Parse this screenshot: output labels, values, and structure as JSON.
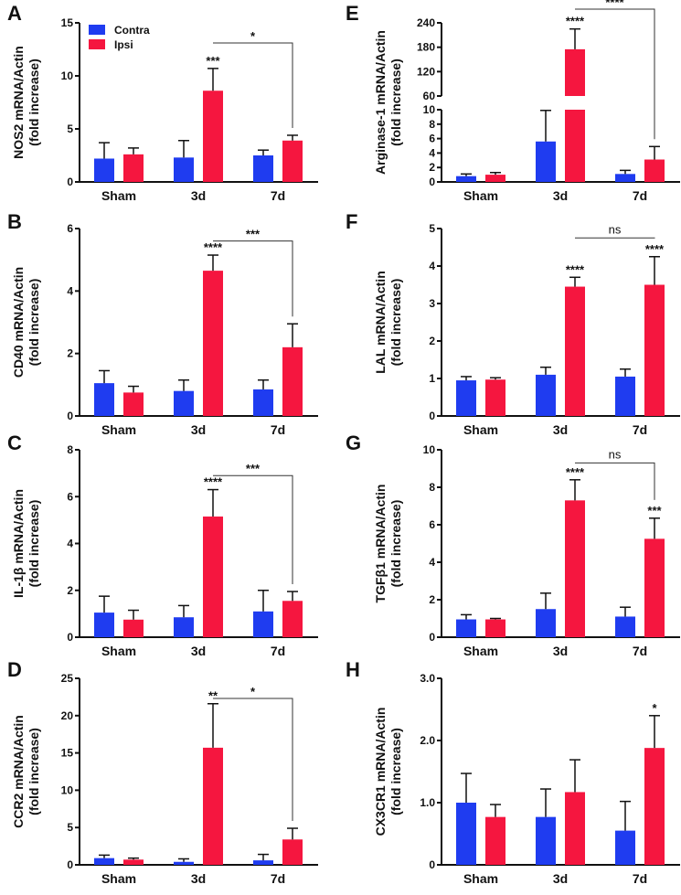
{
  "chart_data": [
    {
      "type": "bar",
      "panel": "A",
      "ylabel": "NOS2 mRNA/Actin",
      "ylabel2": "(fold increase)",
      "categories": [
        "Sham",
        "3d",
        "7d"
      ],
      "ylim": [
        0,
        15
      ],
      "yticks": [
        "0",
        "5",
        "10",
        "15"
      ],
      "ytick_values": [
        0,
        5,
        10,
        15
      ],
      "series": [
        {
          "name": "Contra",
          "values": [
            2.2,
            2.3,
            2.5
          ],
          "err_top": [
            3.7,
            3.9,
            3.0
          ]
        },
        {
          "name": "Ipsi",
          "values": [
            2.6,
            8.6,
            3.9
          ],
          "err_top": [
            3.2,
            10.7,
            4.4
          ]
        }
      ],
      "annotations": [
        {
          "category": "3d",
          "series": "Ipsi",
          "label": "***"
        }
      ],
      "bracket": {
        "from": "3d",
        "to": "7d",
        "level": 13.1,
        "label": "*"
      },
      "legend": {
        "placement": "top-left",
        "entries": [
          "Contra",
          "Ipsi"
        ]
      }
    },
    {
      "type": "bar",
      "panel": "B",
      "ylabel": "CD40 mRNA/Actin",
      "ylabel2": "(fold increase)",
      "categories": [
        "Sham",
        "3d",
        "7d"
      ],
      "ylim": [
        0,
        6
      ],
      "yticks": [
        "0",
        "2",
        "4",
        "6"
      ],
      "ytick_values": [
        0,
        2,
        4,
        6
      ],
      "series": [
        {
          "name": "Contra",
          "values": [
            1.05,
            0.8,
            0.85
          ],
          "err_top": [
            1.45,
            1.15,
            1.15
          ]
        },
        {
          "name": "Ipsi",
          "values": [
            0.75,
            4.65,
            2.2
          ],
          "err_top": [
            0.95,
            5.15,
            2.95
          ]
        }
      ],
      "annotations": [
        {
          "category": "3d",
          "series": "Ipsi",
          "label": "****"
        }
      ],
      "bracket": {
        "from": "3d",
        "to": "7d",
        "level": 5.6,
        "label": "***"
      }
    },
    {
      "type": "bar",
      "panel": "C",
      "ylabel": "IL-1β mRNA/Actin",
      "ylabel2": "(fold increase)",
      "categories": [
        "Sham",
        "3d",
        "7d"
      ],
      "ylim": [
        0,
        8
      ],
      "yticks": [
        "0",
        "2",
        "4",
        "6",
        "8"
      ],
      "ytick_values": [
        0,
        2,
        4,
        6,
        8
      ],
      "series": [
        {
          "name": "Contra",
          "values": [
            1.05,
            0.85,
            1.1
          ],
          "err_top": [
            1.75,
            1.35,
            2.0
          ]
        },
        {
          "name": "Ipsi",
          "values": [
            0.75,
            5.15,
            1.55
          ],
          "err_top": [
            1.15,
            6.3,
            1.95
          ]
        }
      ],
      "annotations": [
        {
          "category": "3d",
          "series": "Ipsi",
          "label": "****"
        }
      ],
      "bracket": {
        "from": "3d",
        "to": "7d",
        "level": 6.9,
        "label": "***"
      }
    },
    {
      "type": "bar",
      "panel": "D",
      "ylabel": "CCR2 mRNA/Actin",
      "ylabel2": "(fold increase)",
      "categories": [
        "Sham",
        "3d",
        "7d"
      ],
      "ylim": [
        0,
        25
      ],
      "yticks": [
        "0",
        "5",
        "10",
        "15",
        "20",
        "25"
      ],
      "ytick_values": [
        0,
        5,
        10,
        15,
        20,
        25
      ],
      "series": [
        {
          "name": "Contra",
          "values": [
            0.9,
            0.4,
            0.6
          ],
          "err_top": [
            1.3,
            0.8,
            1.4
          ]
        },
        {
          "name": "Ipsi",
          "values": [
            0.7,
            15.7,
            3.4
          ],
          "err_top": [
            0.9,
            21.6,
            4.9
          ]
        }
      ],
      "annotations": [
        {
          "category": "3d",
          "series": "Ipsi",
          "label": "**"
        }
      ],
      "bracket": {
        "from": "3d",
        "to": "7d",
        "level": 22.3,
        "label": "*"
      }
    },
    {
      "type": "bar",
      "panel": "E",
      "ylabel": "Arginase-1 mRNA/Actin",
      "ylabel2": "(fold increase)",
      "categories": [
        "Sham",
        "3d",
        "7d"
      ],
      "broken_axis": {
        "lower": [
          0,
          10
        ],
        "upper": [
          60,
          240
        ]
      },
      "yticks": [
        "0",
        "2",
        "4",
        "6",
        "8",
        "10",
        "60",
        "120",
        "180",
        "240"
      ],
      "ytick_values": [
        0,
        2,
        4,
        6,
        8,
        10,
        60,
        120,
        180,
        240
      ],
      "series": [
        {
          "name": "Contra",
          "values": [
            0.8,
            5.6,
            1.1
          ],
          "err_top": [
            1.1,
            9.9,
            1.6
          ]
        },
        {
          "name": "Ipsi",
          "values": [
            1.0,
            175,
            3.1
          ],
          "err_top": [
            1.3,
            225,
            4.9
          ]
        }
      ],
      "annotations": [
        {
          "category": "3d",
          "series": "Ipsi",
          "label": "****"
        }
      ],
      "bracket": {
        "from": "3d",
        "to": "7d",
        "level": 255,
        "label": "****"
      }
    },
    {
      "type": "bar",
      "panel": "F",
      "ylabel": "LAL mRNA/Actin",
      "ylabel2": "(fold increase)",
      "categories": [
        "Sham",
        "3d",
        "7d"
      ],
      "ylim": [
        0,
        5
      ],
      "yticks": [
        "0",
        "1",
        "2",
        "3",
        "4",
        "5"
      ],
      "ytick_values": [
        0,
        1,
        2,
        3,
        4,
        5
      ],
      "series": [
        {
          "name": "Contra",
          "values": [
            0.95,
            1.1,
            1.05
          ],
          "err_top": [
            1.05,
            1.3,
            1.25
          ]
        },
        {
          "name": "Ipsi",
          "values": [
            0.97,
            3.45,
            3.5
          ],
          "err_top": [
            1.02,
            3.7,
            4.25
          ]
        }
      ],
      "annotations": [
        {
          "category": "3d",
          "series": "Ipsi",
          "label": "****"
        },
        {
          "category": "7d",
          "series": "Ipsi",
          "label": "****"
        }
      ],
      "bracket": {
        "from": "3d",
        "to": "7d",
        "level": 4.75,
        "label": "ns"
      }
    },
    {
      "type": "bar",
      "panel": "G",
      "ylabel": "TGFβ1 mRNA/Actin",
      "ylabel2": "(fold increase)",
      "categories": [
        "Sham",
        "3d",
        "7d"
      ],
      "ylim": [
        0,
        10
      ],
      "yticks": [
        "0",
        "2",
        "4",
        "6",
        "8",
        "10"
      ],
      "ytick_values": [
        0,
        2,
        4,
        6,
        8,
        10
      ],
      "series": [
        {
          "name": "Contra",
          "values": [
            0.95,
            1.5,
            1.1
          ],
          "err_top": [
            1.2,
            2.35,
            1.6
          ]
        },
        {
          "name": "Ipsi",
          "values": [
            0.95,
            7.3,
            5.25
          ],
          "err_top": [
            1.0,
            8.4,
            6.35
          ]
        }
      ],
      "annotations": [
        {
          "category": "3d",
          "series": "Ipsi",
          "label": "****"
        },
        {
          "category": "7d",
          "series": "Ipsi",
          "label": "***"
        }
      ],
      "bracket": {
        "from": "3d",
        "to": "7d",
        "level": 9.3,
        "label": "ns"
      }
    },
    {
      "type": "bar",
      "panel": "H",
      "ylabel": "CX3CR1 mRNA/Actin",
      "ylabel2": "(fold increase)",
      "categories": [
        "Sham",
        "3d",
        "7d"
      ],
      "ylim": [
        0,
        3
      ],
      "yticks": [
        "0",
        "1.0",
        "2.0",
        "3.0"
      ],
      "ytick_values": [
        0,
        1,
        2,
        3
      ],
      "series": [
        {
          "name": "Contra",
          "values": [
            1.0,
            0.77,
            0.55
          ],
          "err_top": [
            1.47,
            1.22,
            1.02
          ]
        },
        {
          "name": "Ipsi",
          "values": [
            0.77,
            1.17,
            1.88
          ],
          "err_top": [
            0.97,
            1.69,
            2.4
          ]
        }
      ],
      "annotations": [
        {
          "category": "7d",
          "series": "Ipsi",
          "label": "*"
        }
      ],
      "bracket": null
    }
  ],
  "colors": {
    "Contra": "#1f3cf0",
    "Ipsi": "#f5163f"
  }
}
